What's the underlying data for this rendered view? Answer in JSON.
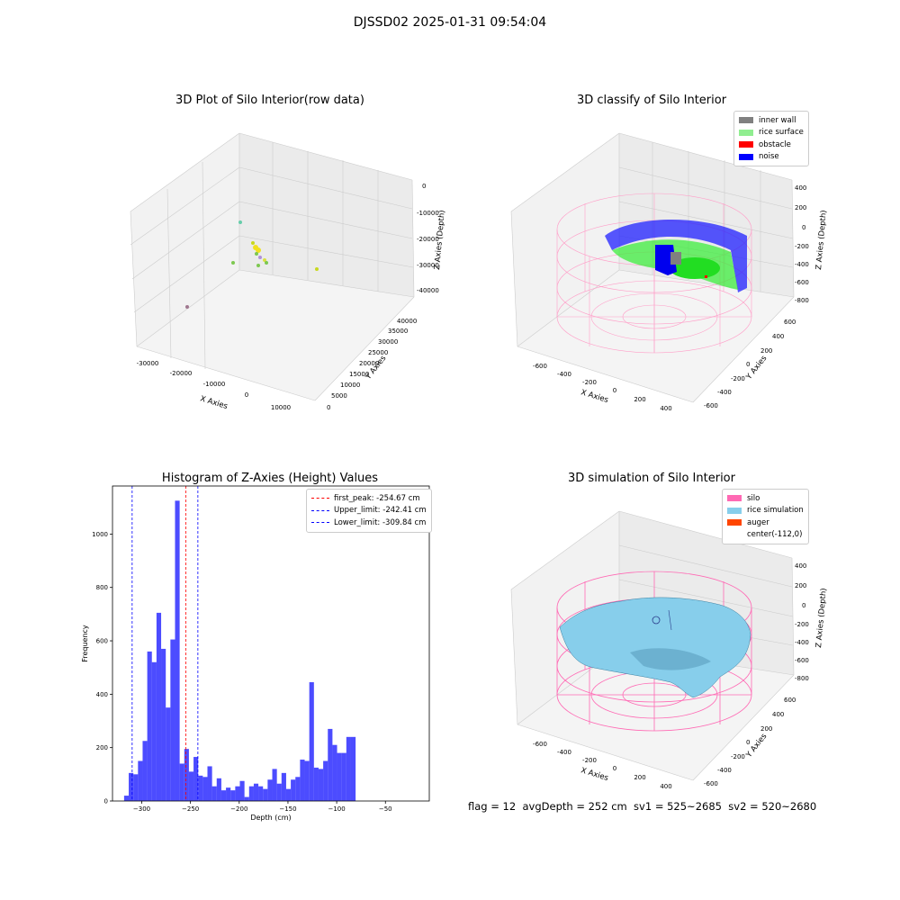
{
  "suptitle": "DJSSD02 2025-01-31 09:54:04",
  "footer": "flag = 12  avgDepth = 252 cm  sv1 = 525~2685  sv2 = 520~2680",
  "colors": {
    "hist": "#0000ff",
    "peak": "#ff0000",
    "limit": "#0000ff",
    "inner_wall": "#808080",
    "rice_surface": "#90ee90",
    "obstacle": "#ff0000",
    "noise": "#0000ff",
    "silo": "#ff69b4",
    "rice_sim": "#87ceeb",
    "auger": "#ff4500"
  },
  "chart_data": [
    {
      "type": "scatter3d",
      "title": "3D Plot of Silo Interior(row data)",
      "xlabel": "X Axies",
      "ylabel": "Y Axies",
      "zlabel": "Z Axies (Depth)",
      "xticks": [
        "-30000",
        "-20000",
        "-10000",
        "0",
        "10000"
      ],
      "yticks": [
        "0",
        "5000",
        "10000",
        "15000",
        "20000",
        "25000",
        "30000",
        "35000",
        "40000"
      ],
      "zticks": [
        "0",
        "-10000",
        "-20000",
        "-30000",
        "-40000"
      ]
    },
    {
      "type": "scatter3d",
      "title": "3D classify of Silo Interior",
      "xlabel": "X Axies",
      "ylabel": "Y Axies",
      "zlabel": "Z Axies (Depth)",
      "xticks": [
        "-600",
        "-400",
        "-200",
        "0",
        "200",
        "400"
      ],
      "yticks": [
        "-600",
        "-400",
        "-200",
        "0",
        "200",
        "400",
        "600"
      ],
      "zticks": [
        "400",
        "200",
        "0",
        "-200",
        "-400",
        "-600",
        "-800"
      ],
      "legend": [
        "inner wall",
        "rice surface",
        "obstacle",
        "noise"
      ]
    },
    {
      "type": "bar",
      "title": "Histogram of Z-Axies (Height) Values",
      "xlabel": "Depth (cm)",
      "ylabel": "Frequency",
      "xlim": [
        -330,
        -5
      ],
      "ylim": [
        0,
        1180
      ],
      "xticks": [
        -300,
        -250,
        -200,
        -150,
        -100,
        -50
      ],
      "yticks": [
        0,
        200,
        400,
        600,
        800,
        1000
      ],
      "bin_start": -318.1,
      "bin_width": 4.75,
      "values": [
        20,
        105,
        100,
        150,
        225,
        560,
        520,
        705,
        570,
        350,
        605,
        1125,
        140,
        195,
        110,
        165,
        95,
        90,
        130,
        55,
        85,
        40,
        50,
        40,
        55,
        75,
        15,
        55,
        65,
        55,
        45,
        80,
        120,
        65,
        105,
        45,
        80,
        90,
        155,
        150,
        445,
        125,
        120,
        150,
        270,
        210,
        180,
        180,
        240,
        240
      ],
      "lines": [
        {
          "label": "first_peak: -254.67 cm",
          "value": -254.67,
          "style": "peak"
        },
        {
          "label": "Upper_limit: -242.41 cm",
          "value": -242.41,
          "style": "limit"
        },
        {
          "label": "Lower_limit: -309.84 cm",
          "value": -309.84,
          "style": "limit"
        }
      ]
    },
    {
      "type": "surface3d",
      "title": "3D simulation of Silo Interior",
      "xlabel": "X Axies",
      "ylabel": "Y Axies",
      "zlabel": "Z Axies (Depth)",
      "xticks": [
        "-600",
        "-400",
        "-200",
        "0",
        "200",
        "400"
      ],
      "yticks": [
        "-600",
        "-400",
        "-200",
        "0",
        "200",
        "400",
        "600"
      ],
      "zticks": [
        "400",
        "200",
        "0",
        "-200",
        "-400",
        "-600",
        "-800"
      ],
      "legend": [
        "silo",
        "rice simulation",
        "auger",
        "center(-112,0)"
      ]
    }
  ]
}
